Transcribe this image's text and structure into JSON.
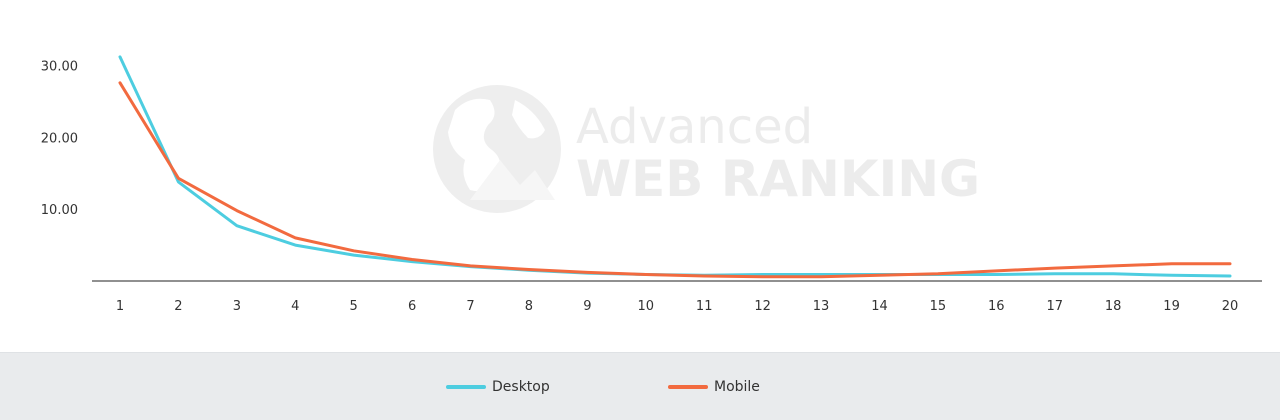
{
  "chart_data": {
    "type": "line",
    "x": [
      1,
      2,
      3,
      4,
      5,
      6,
      7,
      8,
      9,
      10,
      11,
      12,
      13,
      14,
      15,
      16,
      17,
      18,
      19,
      20
    ],
    "x_tick_labels": [
      "1",
      "2",
      "3",
      "4",
      "5",
      "6",
      "7",
      "8",
      "9",
      "10",
      "11",
      "12",
      "13",
      "14",
      "15",
      "16",
      "17",
      "18",
      "19",
      "20"
    ],
    "y_tick_labels": [
      "10.00",
      "20.00",
      "30.00"
    ],
    "y_ticks": [
      10,
      20,
      30
    ],
    "ylim": [
      0,
      33
    ],
    "grid": false,
    "legend_position": "bottom",
    "series": [
      {
        "name": "Desktop",
        "color": "#4dcde0",
        "values": [
          31.2,
          13.8,
          7.7,
          5.0,
          3.6,
          2.7,
          2.0,
          1.5,
          1.1,
          0.9,
          0.8,
          0.9,
          0.9,
          0.9,
          0.9,
          0.9,
          1.0,
          1.0,
          0.8,
          0.7
        ]
      },
      {
        "name": "Mobile",
        "color": "#f26a3f",
        "values": [
          27.6,
          14.3,
          9.8,
          6.0,
          4.2,
          3.0,
          2.1,
          1.6,
          1.2,
          0.9,
          0.7,
          0.6,
          0.6,
          0.8,
          1.0,
          1.4,
          1.8,
          2.1,
          2.4,
          2.4
        ]
      }
    ]
  },
  "watermark": {
    "line1": "Advanced",
    "line2": "WEB RANKING",
    "icon": "globe-icon"
  }
}
